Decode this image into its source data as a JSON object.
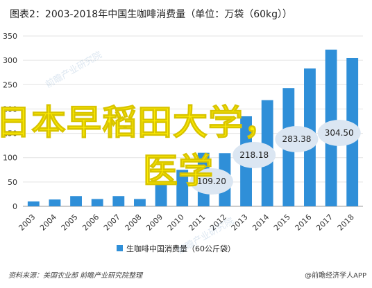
{
  "title": "图表2：2003-2018年中国生咖啡消费量（单位：万袋（60kg））",
  "overlay_line1": "日本早稻田大学，",
  "overlay_line2": "医学",
  "source": "资料来源：美国农业部 前瞻产业研究院整理",
  "brand": "@前瞻经济学人APP",
  "watermarks": [
    "前瞻产业研究院",
    "前瞻产业研究院"
  ],
  "colors": {
    "bar": "#2f8fd8",
    "bubble": "#dbe6f2",
    "grid": "#e3e3e3",
    "overlay": "#ffee00"
  },
  "chart_data": {
    "type": "bar",
    "categories": [
      "2003",
      "2004",
      "2005",
      "2006",
      "2007",
      "2008",
      "2009",
      "2010",
      "2011",
      "2012",
      "2013",
      "2014",
      "2015",
      "2016",
      "2017",
      "2018"
    ],
    "series": [
      {
        "name": "生咖啡中国消费量（60公斤袋）",
        "values": [
          10,
          14,
          21,
          15,
          21,
          15,
          45,
          75,
          110,
          109.2,
          185,
          218.18,
          243,
          283.38,
          322,
          304.5
        ]
      }
    ],
    "ylim": [
      0,
      350
    ],
    "yticks": [
      0,
      50,
      100,
      150,
      200,
      250,
      300,
      350
    ],
    "legend_position": "bottom-center",
    "grid": true,
    "annotations": [
      {
        "category": "2012",
        "text": "109.20"
      },
      {
        "category": "2014",
        "text": "218.18"
      },
      {
        "category": "2016",
        "text": "283.38"
      },
      {
        "category": "2018",
        "text": "304.50"
      }
    ]
  }
}
